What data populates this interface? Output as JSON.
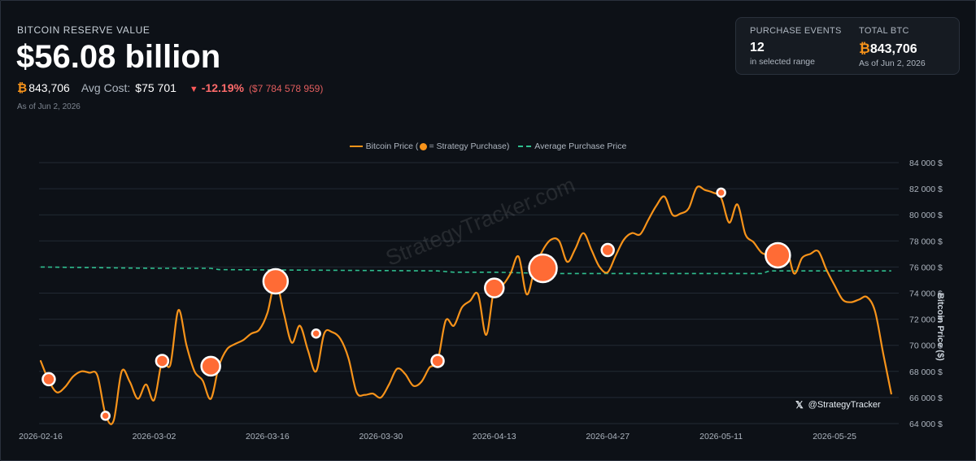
{
  "header": {
    "label": "BITCOIN RESERVE VALUE",
    "value": "$56.08 billion",
    "btc_symbol": "₿",
    "btc_amount": "843,706",
    "avg_cost_label": "Avg Cost:",
    "avg_cost_value": "$75 701",
    "change_arrow": "▼",
    "change_pct": "-12.19%",
    "change_abs": "($7 784 578 959)",
    "as_of": "As of Jun 2, 2026"
  },
  "stats": {
    "purchase_events_label": "PURCHASE EVENTS",
    "purchase_events_value": "12",
    "purchase_events_sub": "in selected range",
    "total_btc_label": "TOTAL BTC",
    "total_btc_symbol": "₿",
    "total_btc_value": "843,706",
    "total_btc_sub": "As of Jun 2, 2026"
  },
  "legend": {
    "price_label_a": "Bitcoin Price (",
    "price_label_b": " = Strategy Purchase)",
    "avg_label": "Average Purchase Price"
  },
  "watermark": "StrategyTracker.com",
  "handle": {
    "icon": "𝕏",
    "text": "@StrategyTracker"
  },
  "colors": {
    "price": "#f7931a",
    "avg": "#2fbf8f",
    "marker": "#ff6b35",
    "background": "#0d1117"
  },
  "chart_data": {
    "type": "line",
    "title": "",
    "xlabel": "",
    "ylabel": "Bitcoin Price ($)",
    "x_start": "2026-02-16",
    "x_end": "2026-06-01",
    "x_ticks": [
      "2026-02-16",
      "2026-03-02",
      "2026-03-16",
      "2026-03-30",
      "2026-04-13",
      "2026-04-27",
      "2026-05-11",
      "2026-05-25"
    ],
    "y_ticks": [
      64000,
      66000,
      68000,
      70000,
      72000,
      74000,
      76000,
      78000,
      80000,
      82000,
      84000
    ],
    "y_tick_labels": [
      "64 000 $",
      "66 000 $",
      "68 000 $",
      "70 000 $",
      "72 000 $",
      "74 000 $",
      "76 000 $",
      "78 000 $",
      "80 000 $",
      "82 000 $",
      "84 000 $"
    ],
    "ylim": [
      64000,
      84000
    ],
    "grid": true,
    "legend_position": "top-center",
    "series": [
      {
        "name": "Bitcoin Price",
        "style": "solid",
        "points": [
          [
            "2026-02-16",
            68800
          ],
          [
            "2026-02-17",
            67300
          ],
          [
            "2026-02-18",
            66400
          ],
          [
            "2026-02-19",
            66800
          ],
          [
            "2026-02-20",
            67600
          ],
          [
            "2026-02-21",
            68000
          ],
          [
            "2026-02-22",
            67900
          ],
          [
            "2026-02-23",
            67700
          ],
          [
            "2026-02-24",
            64700
          ],
          [
            "2026-02-25",
            64200
          ],
          [
            "2026-02-26",
            68000
          ],
          [
            "2026-02-27",
            67200
          ],
          [
            "2026-02-28",
            65900
          ],
          [
            "2026-03-01",
            67000
          ],
          [
            "2026-03-02",
            65800
          ],
          [
            "2026-03-03",
            68800
          ],
          [
            "2026-03-04",
            68500
          ],
          [
            "2026-03-05",
            72700
          ],
          [
            "2026-03-06",
            70000
          ],
          [
            "2026-03-07",
            68000
          ],
          [
            "2026-03-08",
            67300
          ],
          [
            "2026-03-09",
            65900
          ],
          [
            "2026-03-10",
            68400
          ],
          [
            "2026-03-11",
            69700
          ],
          [
            "2026-03-12",
            70100
          ],
          [
            "2026-03-13",
            70400
          ],
          [
            "2026-03-14",
            70900
          ],
          [
            "2026-03-15",
            71200
          ],
          [
            "2026-03-16",
            72500
          ],
          [
            "2026-03-17",
            74900
          ],
          [
            "2026-03-18",
            72500
          ],
          [
            "2026-03-19",
            70200
          ],
          [
            "2026-03-20",
            71500
          ],
          [
            "2026-03-21",
            69600
          ],
          [
            "2026-03-22",
            68000
          ],
          [
            "2026-03-23",
            70900
          ],
          [
            "2026-03-24",
            71000
          ],
          [
            "2026-03-25",
            70500
          ],
          [
            "2026-03-26",
            69000
          ],
          [
            "2026-03-27",
            66400
          ],
          [
            "2026-03-28",
            66200
          ],
          [
            "2026-03-29",
            66300
          ],
          [
            "2026-03-30",
            66000
          ],
          [
            "2026-03-31",
            67000
          ],
          [
            "2026-04-01",
            68200
          ],
          [
            "2026-04-02",
            67800
          ],
          [
            "2026-04-03",
            66900
          ],
          [
            "2026-04-04",
            67200
          ],
          [
            "2026-04-05",
            68300
          ],
          [
            "2026-04-06",
            68800
          ],
          [
            "2026-04-07",
            71900
          ],
          [
            "2026-04-08",
            71500
          ],
          [
            "2026-04-09",
            72900
          ],
          [
            "2026-04-10",
            73400
          ],
          [
            "2026-04-11",
            73900
          ],
          [
            "2026-04-12",
            70800
          ],
          [
            "2026-04-13",
            74400
          ],
          [
            "2026-04-14",
            74600
          ],
          [
            "2026-04-15",
            75500
          ],
          [
            "2026-04-16",
            76800
          ],
          [
            "2026-04-17",
            73900
          ],
          [
            "2026-04-18",
            75900
          ],
          [
            "2026-04-19",
            77300
          ],
          [
            "2026-04-20",
            78100
          ],
          [
            "2026-04-21",
            78000
          ],
          [
            "2026-04-22",
            76400
          ],
          [
            "2026-04-23",
            77400
          ],
          [
            "2026-04-24",
            78600
          ],
          [
            "2026-04-25",
            77300
          ],
          [
            "2026-04-26",
            76000
          ],
          [
            "2026-04-27",
            75600
          ],
          [
            "2026-04-28",
            76900
          ],
          [
            "2026-04-29",
            78100
          ],
          [
            "2026-04-30",
            78600
          ],
          [
            "2026-05-01",
            78500
          ],
          [
            "2026-05-02",
            79600
          ],
          [
            "2026-05-03",
            80700
          ],
          [
            "2026-05-04",
            81400
          ],
          [
            "2026-05-05",
            80000
          ],
          [
            "2026-05-06",
            80100
          ],
          [
            "2026-05-07",
            80500
          ],
          [
            "2026-05-08",
            82100
          ],
          [
            "2026-05-09",
            81900
          ],
          [
            "2026-05-10",
            81700
          ],
          [
            "2026-05-11",
            81300
          ],
          [
            "2026-05-12",
            79400
          ],
          [
            "2026-05-13",
            80800
          ],
          [
            "2026-05-14",
            78500
          ],
          [
            "2026-05-15",
            77900
          ],
          [
            "2026-05-16",
            77100
          ],
          [
            "2026-05-17",
            76900
          ],
          [
            "2026-05-18",
            76700
          ],
          [
            "2026-05-19",
            77600
          ],
          [
            "2026-05-20",
            75500
          ],
          [
            "2026-05-21",
            76700
          ],
          [
            "2026-05-22",
            77000
          ],
          [
            "2026-05-23",
            77200
          ],
          [
            "2026-05-24",
            75800
          ],
          [
            "2026-05-25",
            74600
          ],
          [
            "2026-05-26",
            73500
          ],
          [
            "2026-05-27",
            73300
          ],
          [
            "2026-05-28",
            73500
          ],
          [
            "2026-05-29",
            73700
          ],
          [
            "2026-05-30",
            72600
          ],
          [
            "2026-05-31",
            69400
          ],
          [
            "2026-06-01",
            66300
          ]
        ]
      },
      {
        "name": "Average Purchase Price",
        "style": "dashed",
        "points": [
          [
            "2026-02-16",
            76000
          ],
          [
            "2026-03-02",
            75900
          ],
          [
            "2026-03-09",
            75900
          ],
          [
            "2026-03-10",
            75800
          ],
          [
            "2026-04-06",
            75700
          ],
          [
            "2026-04-08",
            75600
          ],
          [
            "2026-04-13",
            75600
          ],
          [
            "2026-04-20",
            75500
          ],
          [
            "2026-05-16",
            75500
          ],
          [
            "2026-05-17",
            75700
          ],
          [
            "2026-06-01",
            75700
          ]
        ]
      }
    ],
    "purchases": [
      {
        "date": "2026-02-17",
        "price": 67400,
        "size": "small"
      },
      {
        "date": "2026-02-24",
        "price": 64600,
        "size": "xsmall"
      },
      {
        "date": "2026-03-03",
        "price": 68800,
        "size": "small"
      },
      {
        "date": "2026-03-09",
        "price": 68400,
        "size": "medium"
      },
      {
        "date": "2026-03-17",
        "price": 74900,
        "size": "large"
      },
      {
        "date": "2026-03-22",
        "price": 70900,
        "size": "xsmall"
      },
      {
        "date": "2026-04-06",
        "price": 68800,
        "size": "small"
      },
      {
        "date": "2026-04-13",
        "price": 74400,
        "size": "medium"
      },
      {
        "date": "2026-04-19",
        "price": 75900,
        "size": "xlarge"
      },
      {
        "date": "2026-04-27",
        "price": 77300,
        "size": "small"
      },
      {
        "date": "2026-05-11",
        "price": 81700,
        "size": "xsmall"
      },
      {
        "date": "2026-05-18",
        "price": 76900,
        "size": "large"
      }
    ]
  }
}
